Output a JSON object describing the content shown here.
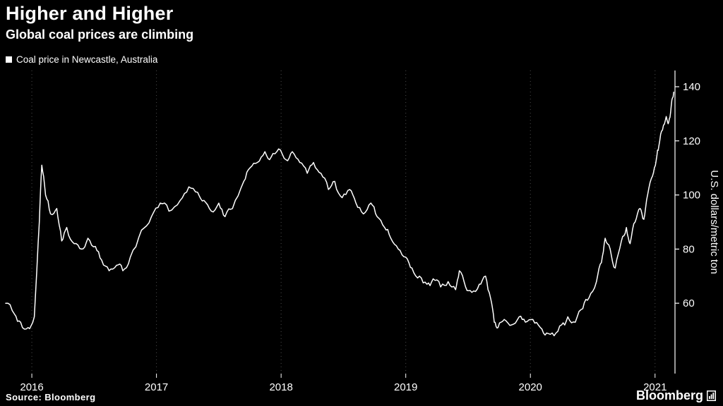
{
  "colors": {
    "background": "#000000",
    "text": "#ffffff",
    "line": "#ffffff",
    "grid": "#4d4d4d"
  },
  "footer": {
    "source": "Source: Bloomberg",
    "brand": "Bloomberg"
  },
  "chart_data": {
    "type": "line",
    "title": "Higher and Higher",
    "subtitle": "Global coal prices are climbing",
    "legend_label": "Coal price in Newcastle, Australia",
    "ylabel": "U.S. dollars/metric ton",
    "legend_position": "top-left",
    "axis_side": "right",
    "grid": "vertical-dotted",
    "xticks": [
      "2016",
      "2017",
      "2018",
      "2019",
      "2020",
      "2021"
    ],
    "yticks": [
      60,
      80,
      100,
      120,
      140
    ],
    "xlim": [
      2015.79,
      2021.16
    ],
    "ylim": [
      34,
      146
    ],
    "x": [
      2015.79,
      2015.86,
      2015.91,
      2015.97,
      2016.02,
      2016.06,
      2016.08,
      2016.11,
      2016.15,
      2016.2,
      2016.24,
      2016.28,
      2016.34,
      2016.4,
      2016.45,
      2016.51,
      2016.56,
      2016.62,
      2016.68,
      2016.73,
      2016.79,
      2016.88,
      2016.96,
      2017.03,
      2017.1,
      2017.19,
      2017.26,
      2017.33,
      2017.38,
      2017.44,
      2017.5,
      2017.55,
      2017.61,
      2017.7,
      2017.75,
      2017.81,
      2017.87,
      2017.92,
      2017.98,
      2018.04,
      2018.09,
      2018.15,
      2018.21,
      2018.26,
      2018.32,
      2018.38,
      2018.43,
      2018.49,
      2018.55,
      2018.6,
      2018.66,
      2018.72,
      2018.77,
      2018.83,
      2018.88,
      2018.94,
      2019.0,
      2019.05,
      2019.11,
      2019.17,
      2019.22,
      2019.28,
      2019.34,
      2019.4,
      2019.43,
      2019.48,
      2019.53,
      2019.59,
      2019.64,
      2019.68,
      2019.71,
      2019.74,
      2019.79,
      2019.85,
      2019.91,
      2019.96,
      2020.02,
      2020.08,
      2020.13,
      2020.19,
      2020.25,
      2020.3,
      2020.36,
      2020.42,
      2020.47,
      2020.53,
      2020.57,
      2020.6,
      2020.64,
      2020.68,
      2020.73,
      2020.77,
      2020.8,
      2020.84,
      2020.88,
      2020.91,
      2020.94,
      2020.98,
      2021.01,
      2021.03,
      2021.06,
      2021.09,
      2021.11,
      2021.13,
      2021.15
    ],
    "values": [
      60,
      56,
      53,
      51,
      55,
      90,
      111,
      100,
      93,
      95,
      83,
      88,
      82,
      80,
      84,
      81,
      76,
      72,
      74,
      72,
      77,
      87,
      92,
      97,
      94,
      98,
      103,
      101,
      98,
      94,
      97,
      92,
      95,
      105,
      110,
      112,
      116,
      114,
      117,
      113,
      116,
      112,
      108,
      112,
      108,
      102,
      105,
      99,
      102,
      97,
      93,
      97,
      92,
      88,
      84,
      80,
      77,
      73,
      70,
      67,
      69,
      66,
      68,
      65,
      72,
      66,
      64,
      67,
      70,
      62,
      53,
      51,
      54,
      52,
      55,
      53,
      54,
      51,
      49,
      48,
      52,
      55,
      53,
      58,
      62,
      68,
      75,
      84,
      80,
      73,
      83,
      88,
      82,
      90,
      95,
      91,
      100,
      107,
      113,
      118,
      124,
      129,
      127,
      133,
      138
    ]
  }
}
